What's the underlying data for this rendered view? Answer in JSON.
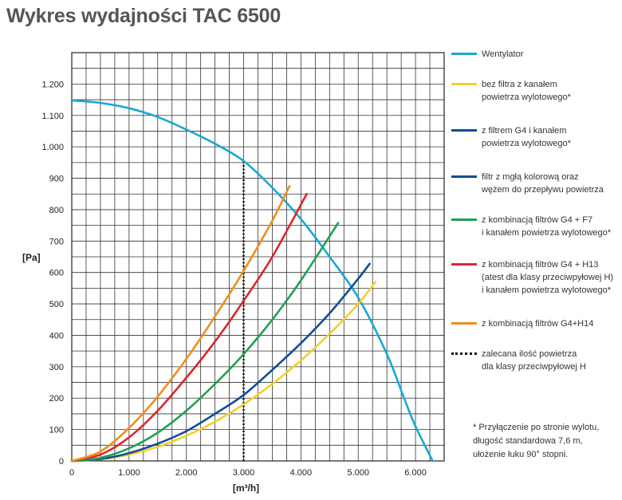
{
  "page_title": "Wykres wydajności TAC 6500",
  "footnote": "*  Przyłączenie po stronie wylotu,\n    długość standardowa 7,6 m,\n    ułożenie łuku 90° stopni.",
  "chart_data": {
    "type": "line",
    "title": "",
    "xlabel": "[m³/h]",
    "ylabel": "[Pa]",
    "xlim": [
      0,
      6500
    ],
    "ylim": [
      0,
      1300
    ],
    "x_ticks": [
      0,
      1000,
      2000,
      3000,
      4000,
      5000,
      6000
    ],
    "x_tick_labels": [
      "0",
      "1.000",
      "2.000",
      "3.000",
      "4.000",
      "5.000",
      "6.000"
    ],
    "y_ticks": [
      0,
      100,
      200,
      300,
      400,
      500,
      600,
      700,
      800,
      900,
      1000,
      1100,
      1200
    ],
    "y_tick_labels": [
      "0",
      "100",
      "200",
      "300",
      "400",
      "500",
      "600",
      "700",
      "800",
      "900",
      "1.000",
      "1.100",
      "1.200"
    ],
    "grid": true,
    "legend_position": "right",
    "series": [
      {
        "name": "Wentylator",
        "color": "#1aa7d8",
        "dashed": false,
        "x": [
          0,
          500,
          1000,
          1500,
          2000,
          2500,
          3000,
          3500,
          4000,
          4500,
          5000,
          5500,
          5800,
          6000,
          6300
        ],
        "y": [
          1148,
          1140,
          1123,
          1095,
          1055,
          1010,
          955,
          870,
          770,
          650,
          520,
          340,
          200,
          110,
          0
        ]
      },
      {
        "name": "bez filtra z kanałem\npowietrza wylotowego*",
        "color": "#f2d02c",
        "dashed": false,
        "x": [
          0,
          500,
          1000,
          1500,
          2000,
          2500,
          3000,
          3500,
          4000,
          4500,
          5000,
          5300
        ],
        "y": [
          0,
          5,
          20,
          45,
          80,
          125,
          180,
          245,
          320,
          405,
          500,
          570
        ]
      },
      {
        "name": "z filtrem G4 i kanałem\npowietrza wylotowego*",
        "color": "#104e94",
        "dashed": false,
        "x": [
          0,
          500,
          1000,
          1500,
          2000,
          2500,
          3000,
          3500,
          4000,
          4500,
          5000,
          5200
        ],
        "y": [
          0,
          6,
          25,
          55,
          95,
          150,
          210,
          290,
          375,
          470,
          580,
          628
        ]
      },
      {
        "name": "filtr z mgłą kolorową oraz\nwężem do przepływu powietrza",
        "color": "#104e94",
        "dashed": false,
        "x": [],
        "y": []
      },
      {
        "name": "z kombinacją filtrów G4 + F7\ni kanałem powietrza wylotowego*",
        "color": "#21a052",
        "dashed": false,
        "x": [
          0,
          500,
          1000,
          1500,
          2000,
          2500,
          3000,
          3500,
          4000,
          4650
        ],
        "y": [
          0,
          10,
          40,
          90,
          160,
          245,
          340,
          450,
          575,
          758
        ]
      },
      {
        "name": "z kombinacją filtrów G4 + H13\n(atest dla klasy przeciwpyłowej H)\ni kanałem powietrza wylotowego*",
        "color": "#d9262b",
        "dashed": false,
        "x": [
          0,
          500,
          1000,
          1500,
          2000,
          2500,
          3000,
          3500,
          4100
        ],
        "y": [
          0,
          20,
          75,
          160,
          265,
          380,
          510,
          650,
          850
        ]
      },
      {
        "name": "z kombinacją filtrów G4+H14",
        "color": "#ec8f1b",
        "dashed": false,
        "x": [
          0,
          500,
          1000,
          1500,
          2000,
          2500,
          3000,
          3500,
          3800
        ],
        "y": [
          0,
          30,
          105,
          205,
          325,
          460,
          605,
          765,
          875
        ]
      },
      {
        "name": "zalecana ilość powietrza\ndla klasy przeciwpyłowej H",
        "color": "#111111",
        "dashed": true,
        "x": [
          3000,
          3000
        ],
        "y": [
          0,
          955
        ]
      }
    ]
  }
}
